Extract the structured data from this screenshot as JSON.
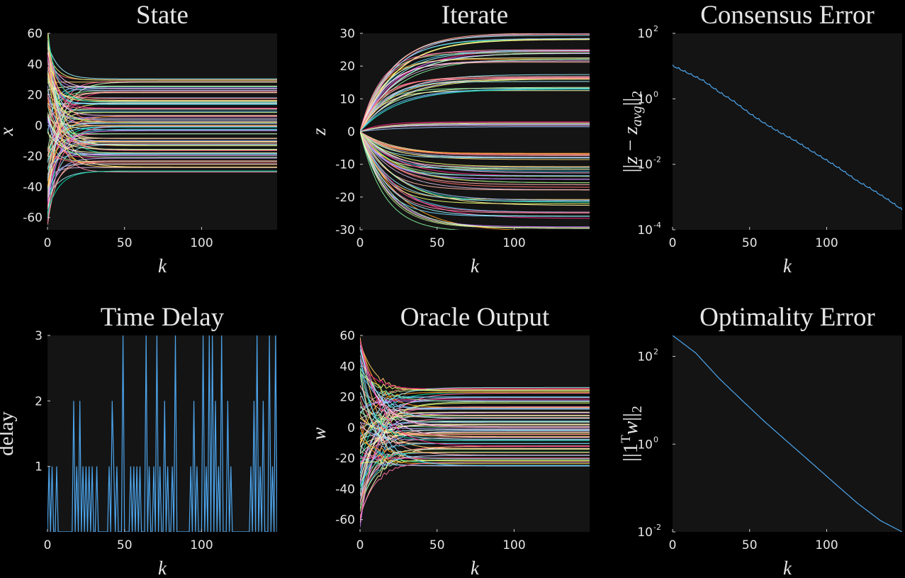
{
  "figure": {
    "background": "#000000",
    "axes_background": "#141414",
    "text_color": "#e6e6e6",
    "line_color": "#4da6ee"
  },
  "chart_data": [
    {
      "id": "state",
      "type": "line",
      "title": "State",
      "xlabel": "k",
      "ylabel": "x",
      "xlim": [
        0,
        149
      ],
      "ylim": [
        -68,
        60
      ],
      "xticks": [
        0,
        50,
        100
      ],
      "yticks": [
        -60,
        -40,
        -20,
        0,
        20,
        40,
        60
      ],
      "grid": false,
      "series_note": "many trajectories converging from wide initial spread (±65) to steady values within about 25 iterations",
      "initial_range": [
        -65,
        65
      ],
      "steady_values": [
        30,
        28.5,
        25,
        24,
        22.5,
        21.5,
        18,
        16,
        15,
        14,
        11,
        9,
        6,
        4,
        2.5,
        1.5,
        0,
        -1,
        -3,
        -5,
        -8,
        -10,
        -11,
        -12,
        -13,
        -16,
        -18,
        -19,
        -21,
        -23,
        -25,
        -27,
        -30
      ],
      "time_constant": 6
    },
    {
      "id": "iterate",
      "type": "line",
      "title": "Iterate",
      "xlabel": "k",
      "ylabel": "z",
      "xlim": [
        0,
        149
      ],
      "ylim": [
        -30,
        30
      ],
      "xticks": [
        0,
        50,
        100
      ],
      "yticks": [
        -30,
        -20,
        -10,
        0,
        10,
        20,
        30
      ],
      "grid": false,
      "series_note": "trajectories start at 0 and saturate to steady values",
      "initial_range": [
        0,
        0
      ],
      "steady_values": [
        30,
        29,
        28.5,
        25,
        24.5,
        24,
        22,
        21.5,
        17,
        16.5,
        16,
        15.5,
        13,
        12.8,
        2.5,
        2,
        -7,
        -7.5,
        -8,
        -11,
        -11.5,
        -13,
        -14,
        -16,
        -17.5,
        -21,
        -22,
        -25,
        -26,
        -29.5,
        -30
      ],
      "time_constant": 18
    },
    {
      "id": "consensus",
      "type": "line",
      "title": "Consensus Error",
      "xlabel": "k",
      "ylabel": "||z − z_avg||_2",
      "yscale": "log",
      "xlim": [
        0,
        149
      ],
      "ylim": [
        0.0001,
        100
      ],
      "xticks": [
        0,
        50,
        100
      ],
      "yticks": [
        0.0001,
        0.01,
        1,
        100
      ],
      "ytick_labels": [
        [
          "10",
          "-4"
        ],
        [
          "10",
          "-2"
        ],
        [
          "10",
          "0"
        ],
        [
          "10",
          "2"
        ]
      ],
      "grid": false,
      "x": [
        0,
        10,
        20,
        30,
        40,
        50,
        60,
        70,
        80,
        90,
        100,
        110,
        120,
        130,
        140,
        149
      ],
      "y": [
        10,
        6,
        3.5,
        1.6,
        0.8,
        0.35,
        0.17,
        0.09,
        0.05,
        0.025,
        0.013,
        0.0065,
        0.003,
        0.0016,
        0.0008,
        0.0004
      ]
    },
    {
      "id": "delay",
      "type": "line",
      "title": "Time Delay",
      "xlabel": "k",
      "ylabel": "delay",
      "xlim": [
        0,
        149
      ],
      "ylim": [
        0,
        3
      ],
      "xticks": [
        0,
        50,
        100
      ],
      "yticks": [
        1,
        2,
        3
      ],
      "grid": false,
      "x": [
        0,
        1,
        2,
        3,
        4,
        5,
        6,
        7,
        8,
        9,
        10,
        11,
        12,
        13,
        14,
        15,
        16,
        17,
        18,
        19,
        20,
        21,
        22,
        23,
        24,
        25,
        26,
        27,
        28,
        29,
        30,
        31,
        32,
        33,
        34,
        35,
        36,
        37,
        38,
        39,
        40,
        41,
        42,
        43,
        44,
        45,
        46,
        47,
        48,
        49,
        50,
        51,
        52,
        53,
        54,
        55,
        56,
        57,
        58,
        59,
        60,
        61,
        62,
        63,
        64,
        65,
        66,
        67,
        68,
        69,
        70,
        71,
        72,
        73,
        74,
        75,
        76,
        77,
        78,
        79,
        80,
        81,
        82,
        83,
        84,
        85,
        86,
        87,
        88,
        89,
        90,
        91,
        92,
        93,
        94,
        95,
        96,
        97,
        98,
        99,
        100,
        101,
        102,
        103,
        104,
        105,
        106,
        107,
        108,
        109,
        110,
        111,
        112,
        113,
        114,
        115,
        116,
        117,
        118,
        119,
        120,
        121,
        122,
        123,
        124,
        125,
        126,
        127,
        128,
        129,
        130,
        131,
        132,
        133,
        134,
        135,
        136,
        137,
        138,
        139,
        140,
        141,
        142,
        143,
        144,
        145,
        146,
        147,
        148,
        149
      ],
      "y": [
        0,
        1,
        0,
        1,
        0,
        0,
        1,
        0,
        0,
        0,
        0,
        0,
        0,
        0,
        0,
        0,
        0,
        2,
        0,
        1,
        0,
        2,
        0,
        1,
        0,
        1,
        0,
        1,
        0,
        1,
        0,
        0,
        1,
        0,
        0,
        0,
        0,
        0,
        0,
        0,
        1,
        0,
        2,
        1,
        0,
        1,
        0,
        0,
        0,
        3,
        0,
        0,
        0,
        0,
        1,
        0,
        1,
        0,
        1,
        0,
        1,
        0,
        0,
        0,
        3,
        0,
        1,
        0,
        0,
        1,
        0,
        3,
        0,
        1,
        0,
        0,
        2,
        0,
        1,
        0,
        0,
        1,
        0,
        3,
        0,
        0,
        0,
        0,
        0,
        0,
        0,
        0,
        0,
        1,
        0,
        2,
        0,
        1,
        0,
        0,
        0,
        3,
        0,
        1,
        0,
        3,
        0,
        3,
        0,
        2,
        0,
        1,
        0,
        3,
        0,
        0,
        0,
        2,
        0,
        1,
        0,
        0,
        0,
        0,
        0,
        0,
        0,
        0,
        0,
        0,
        0,
        0,
        1,
        0,
        2,
        0,
        3,
        0,
        1,
        0,
        2,
        0,
        0,
        0,
        3,
        0,
        1,
        0,
        3,
        0
      ]
    },
    {
      "id": "oracle",
      "type": "line",
      "title": "Oracle Output",
      "xlabel": "k",
      "ylabel": "w",
      "xlim": [
        0,
        149
      ],
      "ylim": [
        -68,
        60
      ],
      "xticks": [
        0,
        50,
        100
      ],
      "yticks": [
        -60,
        -40,
        -20,
        0,
        20,
        40,
        60
      ],
      "grid": false,
      "series_note": "trajectories from wide initial spread converging to steady values",
      "initial_range": [
        -66,
        60
      ],
      "steady_values": [
        25.5,
        24,
        22.5,
        19.5,
        18,
        16.5,
        13.5,
        12,
        10,
        8,
        6,
        4,
        2,
        0.5,
        -1,
        -2.5,
        -4,
        -6,
        -8,
        -10,
        -12,
        -14,
        -16,
        -18,
        -20,
        -21.5,
        -23,
        -25
      ],
      "time_constant": 10
    },
    {
      "id": "optimality",
      "type": "line",
      "title": "Optimality Error",
      "xlabel": "k",
      "ylabel": "||1ᵀw||_2",
      "yscale": "log",
      "xlim": [
        0,
        149
      ],
      "ylim": [
        0.01,
        300
      ],
      "xticks": [
        0,
        50,
        100
      ],
      "yticks": [
        0.01,
        1,
        100
      ],
      "ytick_labels": [
        [
          "10",
          "-2"
        ],
        [
          "10",
          "0"
        ],
        [
          "10",
          "2"
        ]
      ],
      "grid": false,
      "x": [
        0,
        15,
        30,
        45,
        60,
        75,
        90,
        105,
        120,
        135,
        149
      ],
      "y": [
        300,
        120,
        32,
        10,
        3.2,
        1.1,
        0.38,
        0.13,
        0.045,
        0.018,
        0.01
      ]
    }
  ]
}
